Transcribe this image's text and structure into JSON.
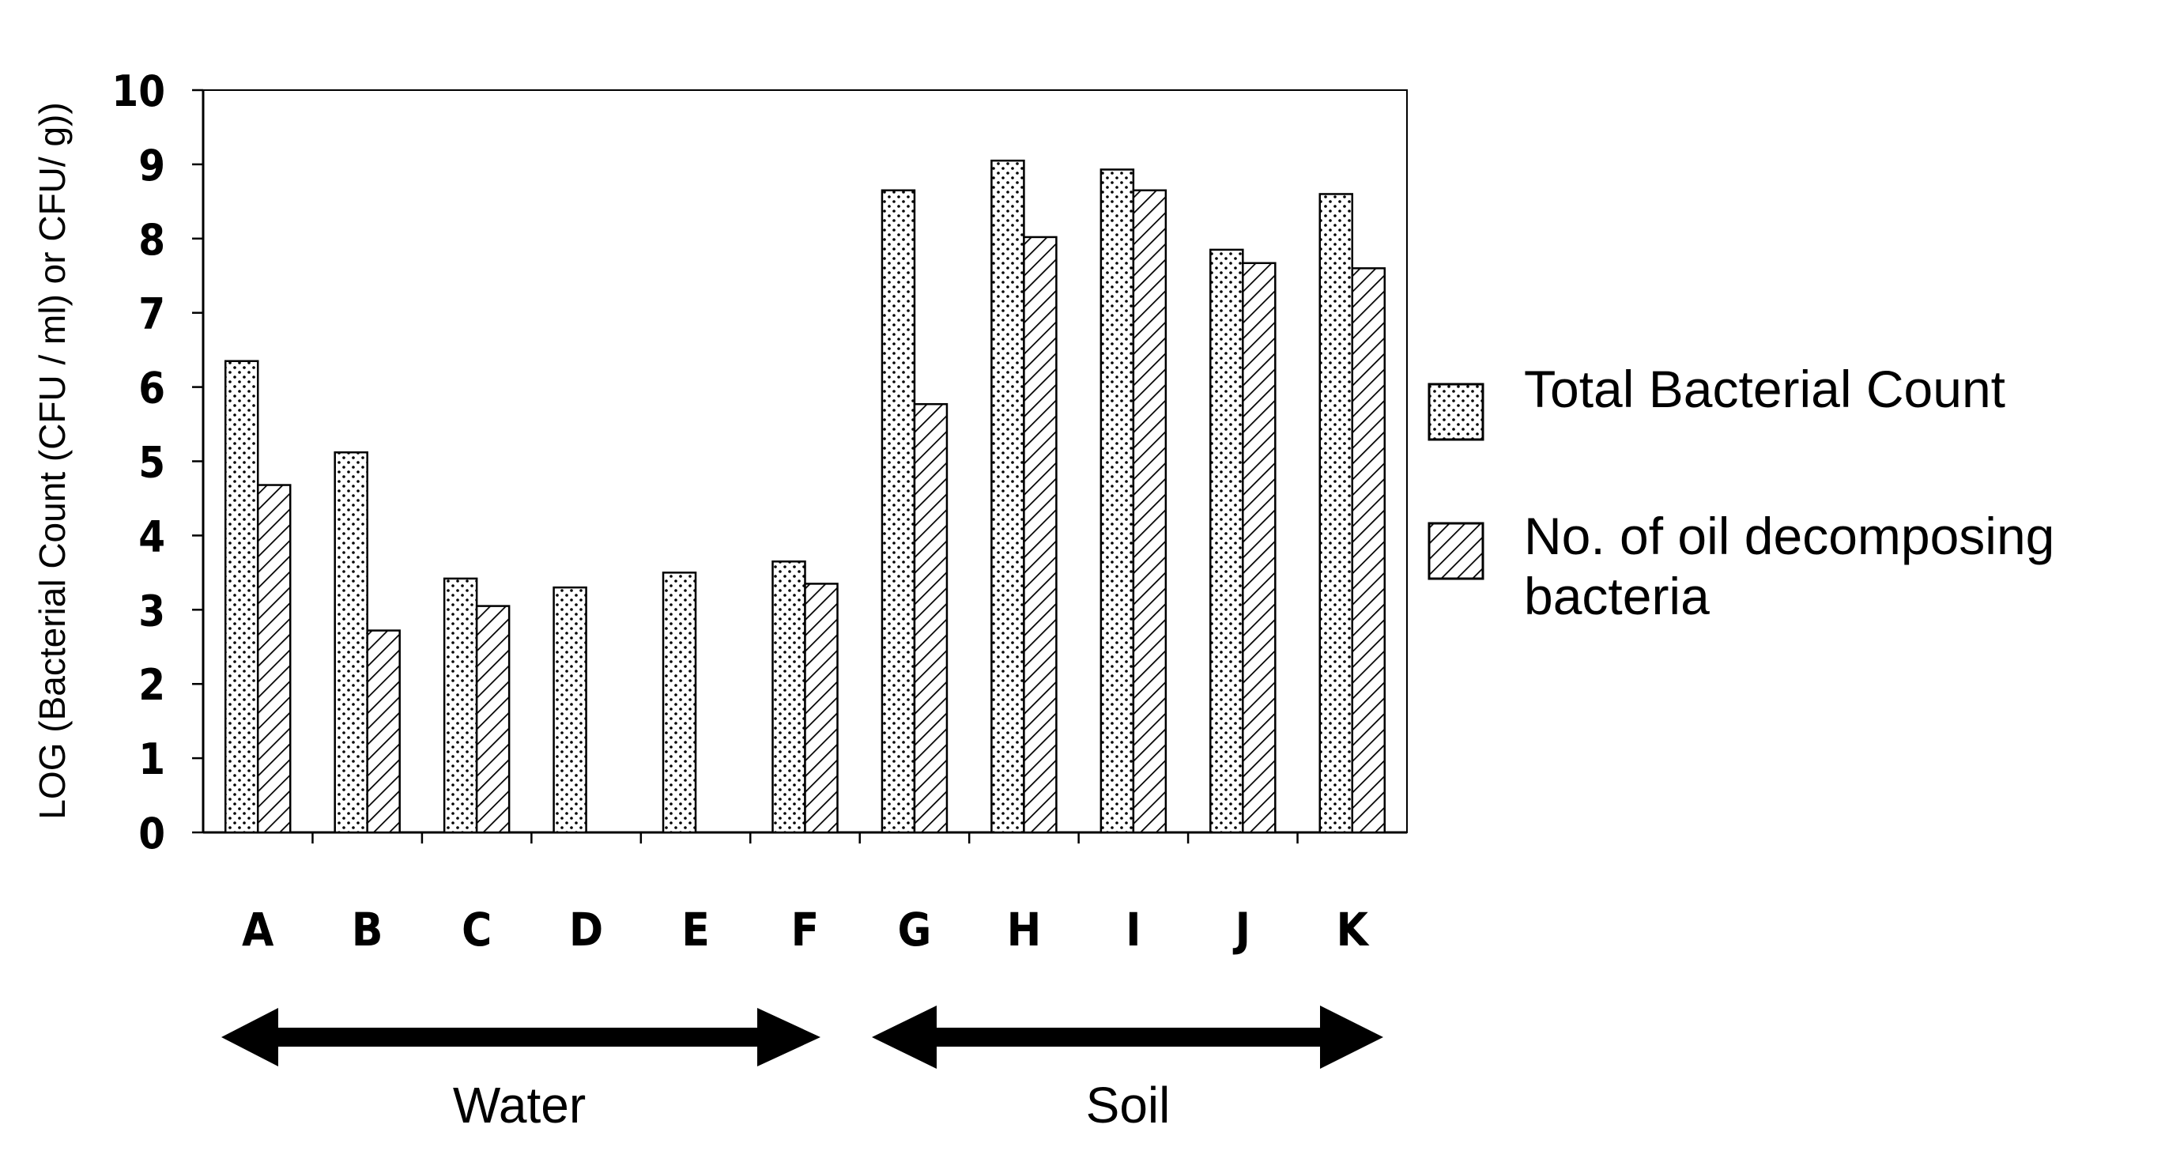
{
  "chart_data": {
    "type": "bar",
    "title": "",
    "xlabel": "",
    "ylabel": "LOG (Bacterial Count (CFU / ml) or CFU/ g))",
    "ylim": [
      0,
      10
    ],
    "yticks": [
      "0",
      "1",
      "2",
      "3",
      "4",
      "5",
      "6",
      "7",
      "8",
      "9",
      "10"
    ],
    "grid": false,
    "legend_position": "right",
    "categories": [
      "A",
      "B",
      "C",
      "D",
      "E",
      "F",
      "G",
      "H",
      "I",
      "J",
      "K"
    ],
    "series": [
      {
        "name": "Total Bacterial Count",
        "pattern": "dots",
        "values": [
          6.35,
          5.12,
          3.42,
          3.3,
          3.5,
          3.65,
          8.65,
          9.05,
          8.93,
          7.85,
          8.6
        ]
      },
      {
        "name": "No. of oil decomposing bacteria",
        "pattern": "hatch",
        "values": [
          4.68,
          2.72,
          3.05,
          0,
          0,
          3.35,
          5.77,
          8.02,
          8.65,
          7.67,
          7.6
        ]
      }
    ],
    "groups": [
      {
        "label": "Water",
        "from": "A",
        "to": "F"
      },
      {
        "label": "Soil",
        "from": "G",
        "to": "K"
      }
    ]
  },
  "colors": {
    "bar_fill": "#ffffff",
    "bar_stroke": "#000000",
    "tick_label": "#000000",
    "axis": "#000000"
  }
}
